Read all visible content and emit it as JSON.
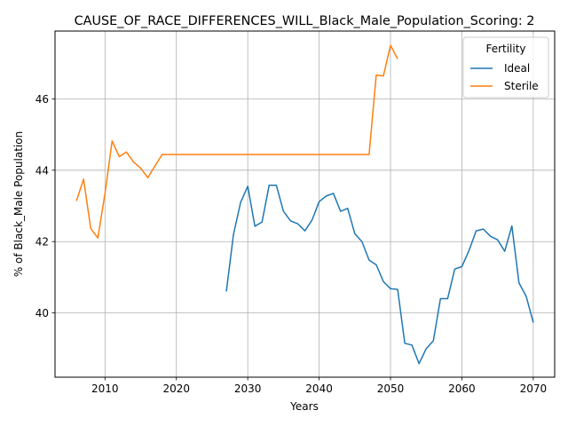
{
  "chart_data": {
    "type": "line",
    "title": "CAUSE_OF_RACE_DIFFERENCES_WILL_Black_Male_Population_Scoring: 2",
    "xlabel": "Years",
    "ylabel": "% of Black_Male Population",
    "xlim": [
      2003,
      2073
    ],
    "ylim": [
      38.2,
      47.9
    ],
    "xticks": [
      2010,
      2020,
      2030,
      2040,
      2050,
      2060,
      2070
    ],
    "yticks": [
      40,
      42,
      44,
      46
    ],
    "grid": true,
    "legend": {
      "title": "Fertility",
      "placement": "top-right"
    },
    "series": [
      {
        "name": "Ideal",
        "color": "#1f77b4",
        "x": [
          2027,
          2028,
          2029,
          2030,
          2031,
          2032,
          2033,
          2034,
          2035,
          2036,
          2037,
          2038,
          2039,
          2040,
          2041,
          2042,
          2043,
          2044,
          2045,
          2046,
          2047,
          2048,
          2049,
          2050,
          2051,
          2052,
          2053,
          2054,
          2055,
          2056,
          2057,
          2058,
          2059,
          2060,
          2061,
          2062,
          2063,
          2064,
          2065,
          2066,
          2067,
          2068,
          2069,
          2070
        ],
        "y": [
          40.6,
          42.2,
          43.1,
          43.55,
          42.43,
          42.55,
          43.58,
          43.58,
          42.85,
          42.58,
          42.5,
          42.3,
          42.6,
          43.12,
          43.28,
          43.35,
          42.85,
          42.93,
          42.22,
          42.0,
          41.48,
          41.35,
          40.88,
          40.68,
          40.66,
          39.15,
          39.1,
          38.58,
          39.0,
          39.22,
          40.4,
          40.4,
          41.23,
          41.3,
          41.75,
          42.3,
          42.35,
          42.15,
          42.05,
          41.73,
          42.44,
          40.84,
          40.47,
          39.73
        ]
      },
      {
        "name": "Sterile",
        "color": "#ff7f0e",
        "x": [
          2006,
          2007,
          2008,
          2009,
          2010,
          2011,
          2012,
          2013,
          2014,
          2015,
          2016,
          2017,
          2018,
          2019,
          2020,
          2025,
          2030,
          2035,
          2040,
          2045,
          2046,
          2047,
          2048,
          2049,
          2050,
          2051
        ],
        "y": [
          43.14,
          43.75,
          42.37,
          42.1,
          43.35,
          44.82,
          44.38,
          44.51,
          44.23,
          44.06,
          43.79,
          44.12,
          44.44,
          44.44,
          44.44,
          44.44,
          44.44,
          44.44,
          44.44,
          44.44,
          44.44,
          44.44,
          46.67,
          46.64,
          47.5,
          47.12
        ]
      }
    ]
  }
}
